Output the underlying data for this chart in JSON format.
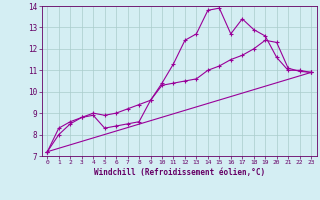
{
  "title": "",
  "xlabel": "Windchill (Refroidissement éolien,°C)",
  "background_color": "#d4eef3",
  "line_color": "#990099",
  "grid_color": "#aacccc",
  "xlim": [
    -0.5,
    23.5
  ],
  "ylim": [
    7,
    14
  ],
  "xticks": [
    0,
    1,
    2,
    3,
    4,
    5,
    6,
    7,
    8,
    9,
    10,
    11,
    12,
    13,
    14,
    15,
    16,
    17,
    18,
    19,
    20,
    21,
    22,
    23
  ],
  "yticks": [
    7,
    8,
    9,
    10,
    11,
    12,
    13,
    14
  ],
  "line1_x": [
    0,
    1,
    2,
    3,
    4,
    5,
    6,
    7,
    8,
    9,
    10,
    11,
    12,
    13,
    14,
    15,
    16,
    17,
    18,
    19,
    20,
    21,
    22,
    23
  ],
  "line1_y": [
    7.2,
    8.3,
    8.6,
    8.8,
    8.9,
    8.3,
    8.4,
    8.5,
    8.6,
    9.6,
    10.4,
    11.3,
    12.4,
    12.7,
    13.8,
    13.9,
    12.7,
    13.4,
    12.9,
    12.6,
    11.6,
    11.0,
    11.0,
    10.9
  ],
  "line2_x": [
    0,
    1,
    2,
    3,
    4,
    5,
    6,
    7,
    8,
    9,
    10,
    11,
    12,
    13,
    14,
    15,
    16,
    17,
    18,
    19,
    20,
    21,
    22,
    23
  ],
  "line2_y": [
    7.2,
    8.0,
    8.5,
    8.8,
    9.0,
    8.9,
    9.0,
    9.2,
    9.4,
    9.6,
    10.3,
    10.4,
    10.5,
    10.6,
    11.0,
    11.2,
    11.5,
    11.7,
    12.0,
    12.4,
    12.3,
    11.1,
    10.95,
    10.9
  ],
  "line3_x": [
    0,
    23
  ],
  "line3_y": [
    7.2,
    10.9
  ]
}
